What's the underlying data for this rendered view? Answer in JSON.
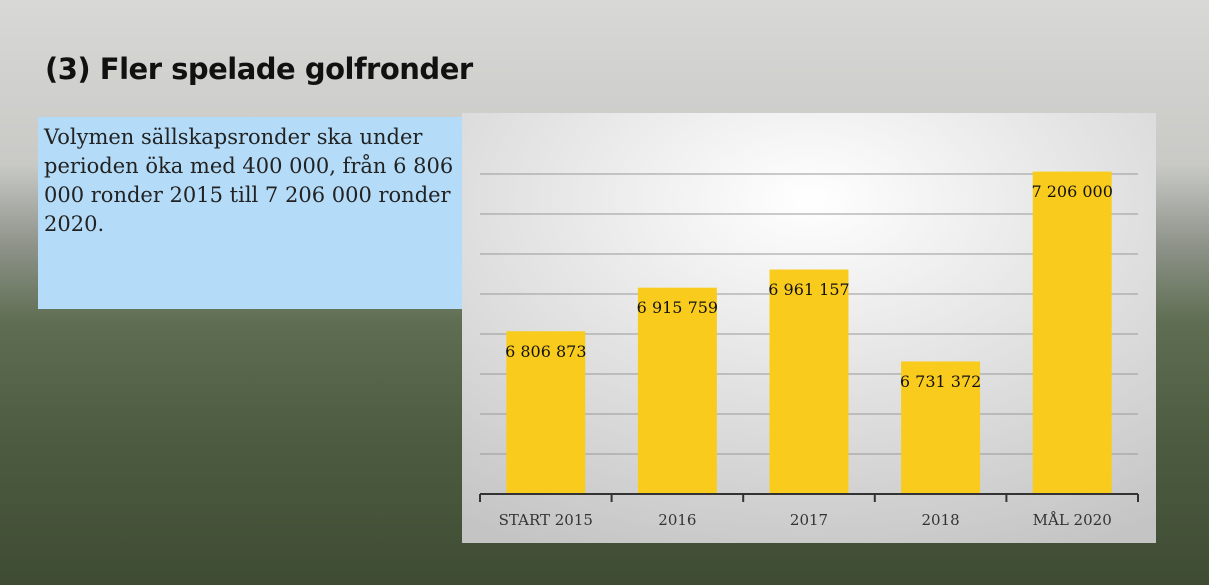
{
  "slide": {
    "title": "(3) Fler spelade golfronder",
    "text": "Volymen sällskapsronder ska under perioden öka med 400 000, från 6 806 000 ronder 2015 till 7 206 000 ronder 2020."
  },
  "chart_data": {
    "type": "bar",
    "categories": [
      "START 2015",
      "2016",
      "2017",
      "2018",
      "MÅL 2020"
    ],
    "values": [
      6806873,
      6915759,
      6961157,
      6731372,
      7206000
    ],
    "value_labels": [
      "6 806 873",
      "6 915 759",
      "6 961 157",
      "6 731 372",
      "7 206 000"
    ],
    "color": "#f9cb1d",
    "ylim": [
      6400000,
      7300000
    ],
    "yticks": [
      6400000,
      6500000,
      6600000,
      6700000,
      6800000,
      6900000,
      7000000,
      7100000,
      7200000
    ],
    "grid": true
  }
}
